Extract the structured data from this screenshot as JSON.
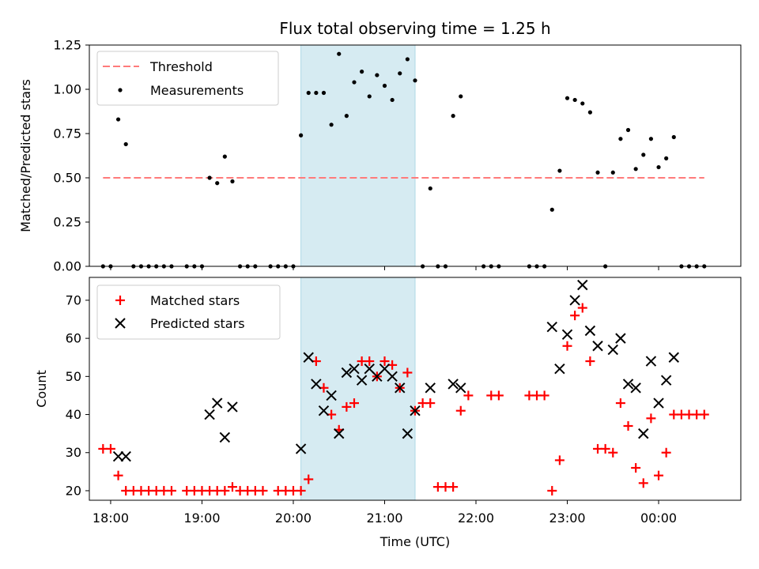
{
  "chart_data": [
    {
      "type": "scatter",
      "title": "Flux total observing time = 1.25 h",
      "xlabel": "",
      "ylabel": "Matched/Predicted stars",
      "ylim": [
        0,
        1.25
      ],
      "yticks": [
        "0.00",
        "0.25",
        "0.50",
        "0.75",
        "1.00",
        "1.25"
      ],
      "xlim": [
        "17:46",
        "00:54"
      ],
      "xtick_labels_visible": false,
      "legend_position": "top-left",
      "shaded_span": {
        "start": "20:05",
        "end": "21:20",
        "color": "#add8e6"
      },
      "threshold": {
        "name": "Threshold",
        "value": 0.5,
        "x_start": "17:55",
        "x_end": "00:30",
        "color": "#ff7b7b",
        "style": "dashed"
      },
      "series": [
        {
          "name": "Measurements",
          "marker": "dot",
          "color": "#000000",
          "points": [
            [
              "17:55",
              0.0
            ],
            [
              "18:00",
              0.0
            ],
            [
              "18:05",
              0.83
            ],
            [
              "18:10",
              0.69
            ],
            [
              "18:15",
              0.0
            ],
            [
              "18:20",
              0.0
            ],
            [
              "18:25",
              0.0
            ],
            [
              "18:30",
              0.0
            ],
            [
              "18:35",
              0.0
            ],
            [
              "18:40",
              0.0
            ],
            [
              "18:50",
              0.0
            ],
            [
              "18:55",
              0.0
            ],
            [
              "19:00",
              0.0
            ],
            [
              "19:05",
              0.5
            ],
            [
              "19:10",
              0.47
            ],
            [
              "19:15",
              0.62
            ],
            [
              "19:20",
              0.48
            ],
            [
              "19:25",
              0.0
            ],
            [
              "19:30",
              0.0
            ],
            [
              "19:35",
              0.0
            ],
            [
              "19:45",
              0.0
            ],
            [
              "19:50",
              0.0
            ],
            [
              "19:55",
              0.0
            ],
            [
              "20:00",
              0.0
            ],
            [
              "20:05",
              0.74
            ],
            [
              "20:10",
              0.98
            ],
            [
              "20:15",
              0.98
            ],
            [
              "20:20",
              0.98
            ],
            [
              "20:25",
              0.8
            ],
            [
              "20:30",
              1.2
            ],
            [
              "20:35",
              0.85
            ],
            [
              "20:40",
              1.04
            ],
            [
              "20:45",
              1.1
            ],
            [
              "20:50",
              0.96
            ],
            [
              "20:55",
              1.08
            ],
            [
              "21:00",
              1.02
            ],
            [
              "21:05",
              0.94
            ],
            [
              "21:10",
              1.09
            ],
            [
              "21:15",
              1.17
            ],
            [
              "21:20",
              1.05
            ],
            [
              "21:25",
              0.0
            ],
            [
              "21:30",
              0.44
            ],
            [
              "21:35",
              0.0
            ],
            [
              "21:40",
              0.0
            ],
            [
              "21:45",
              0.85
            ],
            [
              "21:50",
              0.96
            ],
            [
              "22:05",
              0.0
            ],
            [
              "22:10",
              0.0
            ],
            [
              "22:15",
              0.0
            ],
            [
              "22:35",
              0.0
            ],
            [
              "22:40",
              0.0
            ],
            [
              "22:45",
              0.0
            ],
            [
              "22:50",
              0.32
            ],
            [
              "22:55",
              0.54
            ],
            [
              "23:00",
              0.95
            ],
            [
              "23:05",
              0.94
            ],
            [
              "23:10",
              0.92
            ],
            [
              "23:15",
              0.87
            ],
            [
              "23:20",
              0.53
            ],
            [
              "23:25",
              0.0
            ],
            [
              "23:30",
              0.53
            ],
            [
              "23:35",
              0.72
            ],
            [
              "23:40",
              0.77
            ],
            [
              "23:45",
              0.55
            ],
            [
              "23:50",
              0.63
            ],
            [
              "23:55",
              0.72
            ],
            [
              "24:00",
              0.56
            ],
            [
              "24:05",
              0.61
            ],
            [
              "24:10",
              0.73
            ],
            [
              "24:15",
              0.0
            ],
            [
              "24:20",
              0.0
            ],
            [
              "24:25",
              0.0
            ],
            [
              "24:30",
              0.0
            ]
          ]
        }
      ]
    },
    {
      "type": "scatter",
      "title": "",
      "xlabel": "Time (UTC)",
      "ylabel": "Count",
      "ylim": [
        17.5,
        76
      ],
      "yticks": [
        "20",
        "30",
        "40",
        "50",
        "60",
        "70"
      ],
      "xlim": [
        "17:46",
        "00:54"
      ],
      "xticks": [
        "18:00",
        "19:00",
        "20:00",
        "21:00",
        "22:00",
        "23:00",
        "00:00"
      ],
      "legend_position": "top-left",
      "shaded_span": {
        "start": "20:05",
        "end": "21:20",
        "color": "#add8e6"
      },
      "series": [
        {
          "name": "Matched stars",
          "marker": "+",
          "color": "#ff0000",
          "points": [
            [
              "17:55",
              31
            ],
            [
              "18:00",
              31
            ],
            [
              "18:05",
              24
            ],
            [
              "18:10",
              20
            ],
            [
              "18:15",
              20
            ],
            [
              "18:20",
              20
            ],
            [
              "18:25",
              20
            ],
            [
              "18:30",
              20
            ],
            [
              "18:35",
              20
            ],
            [
              "18:40",
              20
            ],
            [
              "18:50",
              20
            ],
            [
              "18:55",
              20
            ],
            [
              "19:00",
              20
            ],
            [
              "19:05",
              20
            ],
            [
              "19:10",
              20
            ],
            [
              "19:15",
              20
            ],
            [
              "19:20",
              21
            ],
            [
              "19:25",
              20
            ],
            [
              "19:30",
              20
            ],
            [
              "19:35",
              20
            ],
            [
              "19:40",
              20
            ],
            [
              "19:50",
              20
            ],
            [
              "19:55",
              20
            ],
            [
              "20:00",
              20
            ],
            [
              "20:05",
              20
            ],
            [
              "20:10",
              23
            ],
            [
              "20:15",
              54
            ],
            [
              "20:20",
              47
            ],
            [
              "20:25",
              40
            ],
            [
              "20:30",
              36
            ],
            [
              "20:35",
              42
            ],
            [
              "20:40",
              43
            ],
            [
              "20:45",
              54
            ],
            [
              "20:50",
              54
            ],
            [
              "20:55",
              50
            ],
            [
              "21:00",
              54
            ],
            [
              "21:05",
              53
            ],
            [
              "21:10",
              47
            ],
            [
              "21:15",
              51
            ],
            [
              "21:20",
              41
            ],
            [
              "21:25",
              43
            ],
            [
              "21:30",
              43
            ],
            [
              "21:35",
              21
            ],
            [
              "21:40",
              21
            ],
            [
              "21:45",
              21
            ],
            [
              "21:50",
              41
            ],
            [
              "21:55",
              45
            ],
            [
              "22:10",
              45
            ],
            [
              "22:15",
              45
            ],
            [
              "22:35",
              45
            ],
            [
              "22:40",
              45
            ],
            [
              "22:45",
              45
            ],
            [
              "22:50",
              20
            ],
            [
              "22:55",
              28
            ],
            [
              "23:00",
              58
            ],
            [
              "23:05",
              66
            ],
            [
              "23:10",
              68
            ],
            [
              "23:15",
              54
            ],
            [
              "23:20",
              31
            ],
            [
              "23:25",
              31
            ],
            [
              "23:30",
              30
            ],
            [
              "23:35",
              43
            ],
            [
              "23:40",
              37
            ],
            [
              "23:45",
              26
            ],
            [
              "23:50",
              22
            ],
            [
              "23:55",
              39
            ],
            [
              "24:00",
              24
            ],
            [
              "24:05",
              30
            ],
            [
              "24:10",
              40
            ],
            [
              "24:15",
              40
            ],
            [
              "24:20",
              40
            ],
            [
              "24:25",
              40
            ],
            [
              "24:30",
              40
            ]
          ]
        },
        {
          "name": "Predicted stars",
          "marker": "x",
          "color": "#000000",
          "points": [
            [
              "18:05",
              29
            ],
            [
              "18:10",
              29
            ],
            [
              "19:05",
              40
            ],
            [
              "19:10",
              43
            ],
            [
              "19:15",
              34
            ],
            [
              "19:20",
              42
            ],
            [
              "20:05",
              31
            ],
            [
              "20:10",
              55
            ],
            [
              "20:15",
              48
            ],
            [
              "20:20",
              41
            ],
            [
              "20:25",
              45
            ],
            [
              "20:30",
              35
            ],
            [
              "20:35",
              51
            ],
            [
              "20:40",
              52
            ],
            [
              "20:45",
              49
            ],
            [
              "20:50",
              52
            ],
            [
              "20:55",
              50
            ],
            [
              "21:00",
              52
            ],
            [
              "21:05",
              50
            ],
            [
              "21:10",
              47
            ],
            [
              "21:15",
              35
            ],
            [
              "21:20",
              41
            ],
            [
              "21:30",
              47
            ],
            [
              "21:45",
              48
            ],
            [
              "21:50",
              47
            ],
            [
              "22:50",
              63
            ],
            [
              "22:55",
              52
            ],
            [
              "23:00",
              61
            ],
            [
              "23:05",
              70
            ],
            [
              "23:10",
              74
            ],
            [
              "23:15",
              62
            ],
            [
              "23:20",
              58
            ],
            [
              "23:30",
              57
            ],
            [
              "23:35",
              60
            ],
            [
              "23:40",
              48
            ],
            [
              "23:45",
              47
            ],
            [
              "23:50",
              35
            ],
            [
              "23:55",
              54
            ],
            [
              "24:00",
              43
            ],
            [
              "24:05",
              49
            ],
            [
              "24:10",
              55
            ]
          ]
        }
      ]
    }
  ]
}
